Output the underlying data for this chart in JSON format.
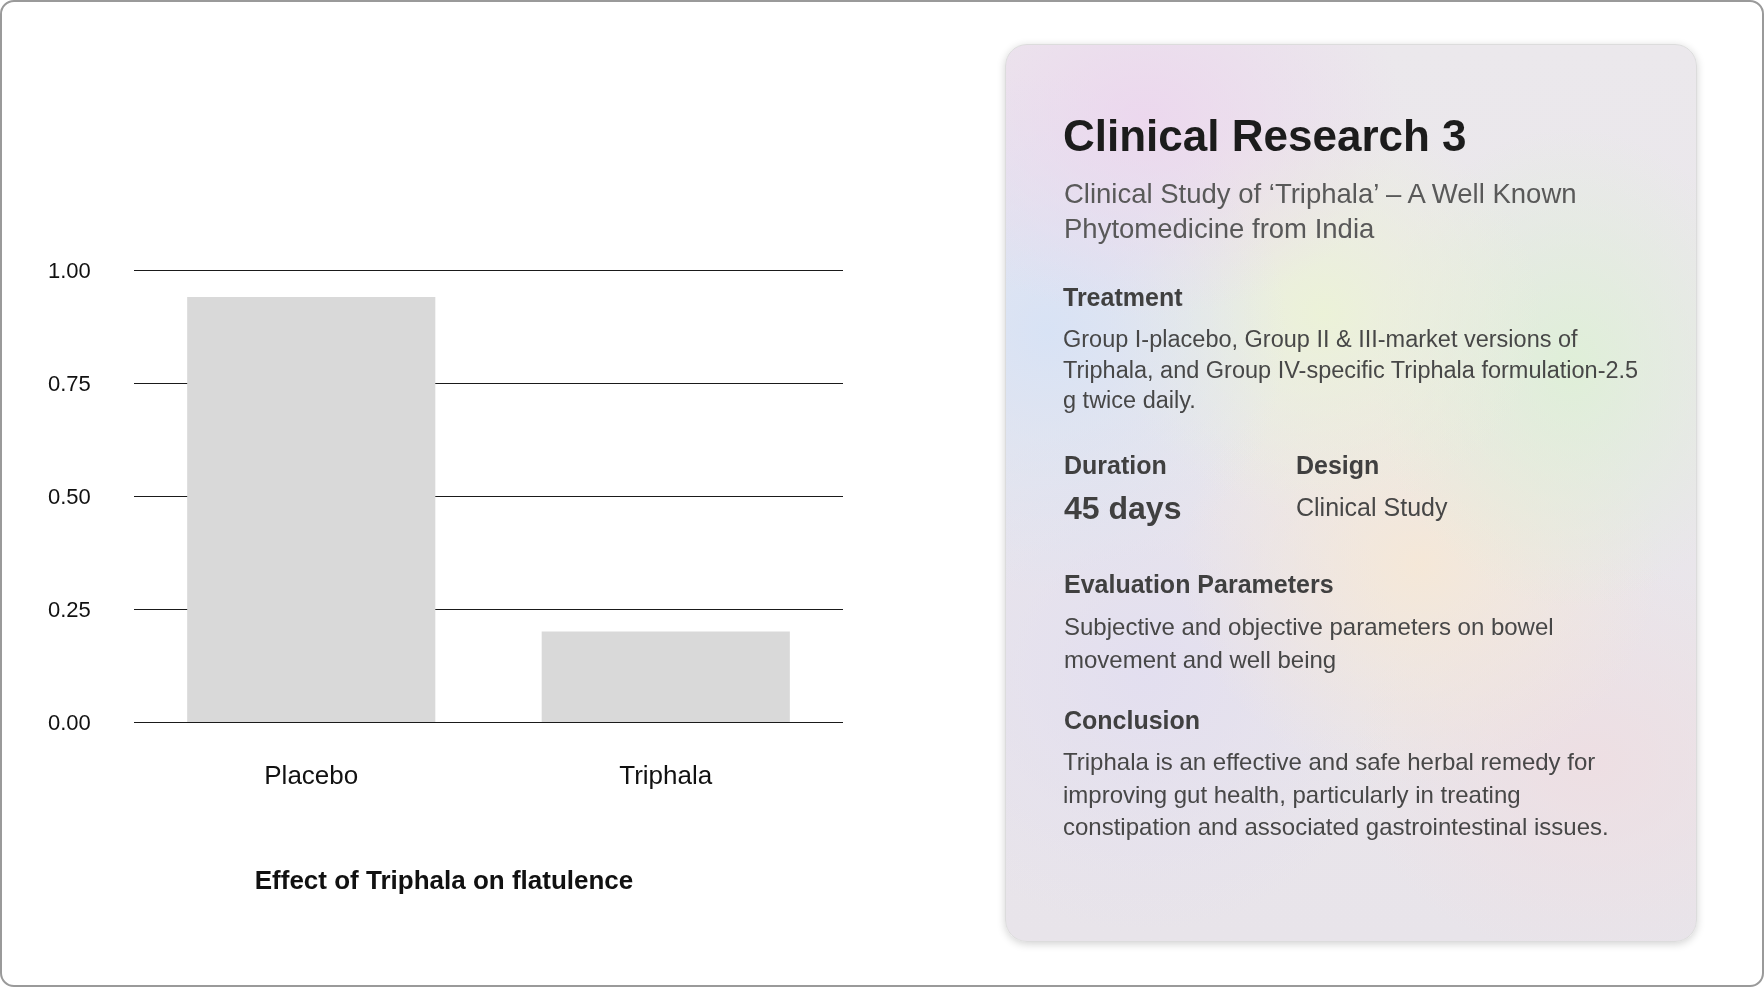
{
  "chart_data": [
    {
      "type": "bar",
      "title": "Effect of Triphala on flatulence",
      "categories": [
        "Placebo",
        "Triphala"
      ],
      "values": [
        0.94,
        0.2
      ],
      "color": "#d9d9d9",
      "ylim": [
        0,
        1
      ],
      "yticks": [
        {
          "value": 0,
          "label": "0.00"
        },
        {
          "value": 0.25,
          "label": "0.25"
        },
        {
          "value": 0.5,
          "label": "0.50"
        },
        {
          "value": 0.75,
          "label": "0.75"
        },
        {
          "value": 1,
          "label": "1.00"
        }
      ],
      "grid": "y"
    },
    {
      "type": "other",
      "title": "Clinical Research 3",
      "subtitle": "Clinical Study of ‘Triphala’ – A Well Known Phytomedicine from India",
      "annotations": [
        "Treatment",
        "Group I-placebo, Group II & III-market versions of Triphala, and Group IV-specific Triphala formulation-2.5 g twice daily.",
        "Duration",
        "45 days",
        "Design",
        "Clinical Study",
        "Evaluation Parameters",
        "Subjective and objective parameters on bowel movement and well being",
        "Conclusion",
        "Triphala is an effective and safe herbal remedy for improving gut health, particularly in treating constipation and associated gastrointestinal issues."
      ]
    }
  ]
}
